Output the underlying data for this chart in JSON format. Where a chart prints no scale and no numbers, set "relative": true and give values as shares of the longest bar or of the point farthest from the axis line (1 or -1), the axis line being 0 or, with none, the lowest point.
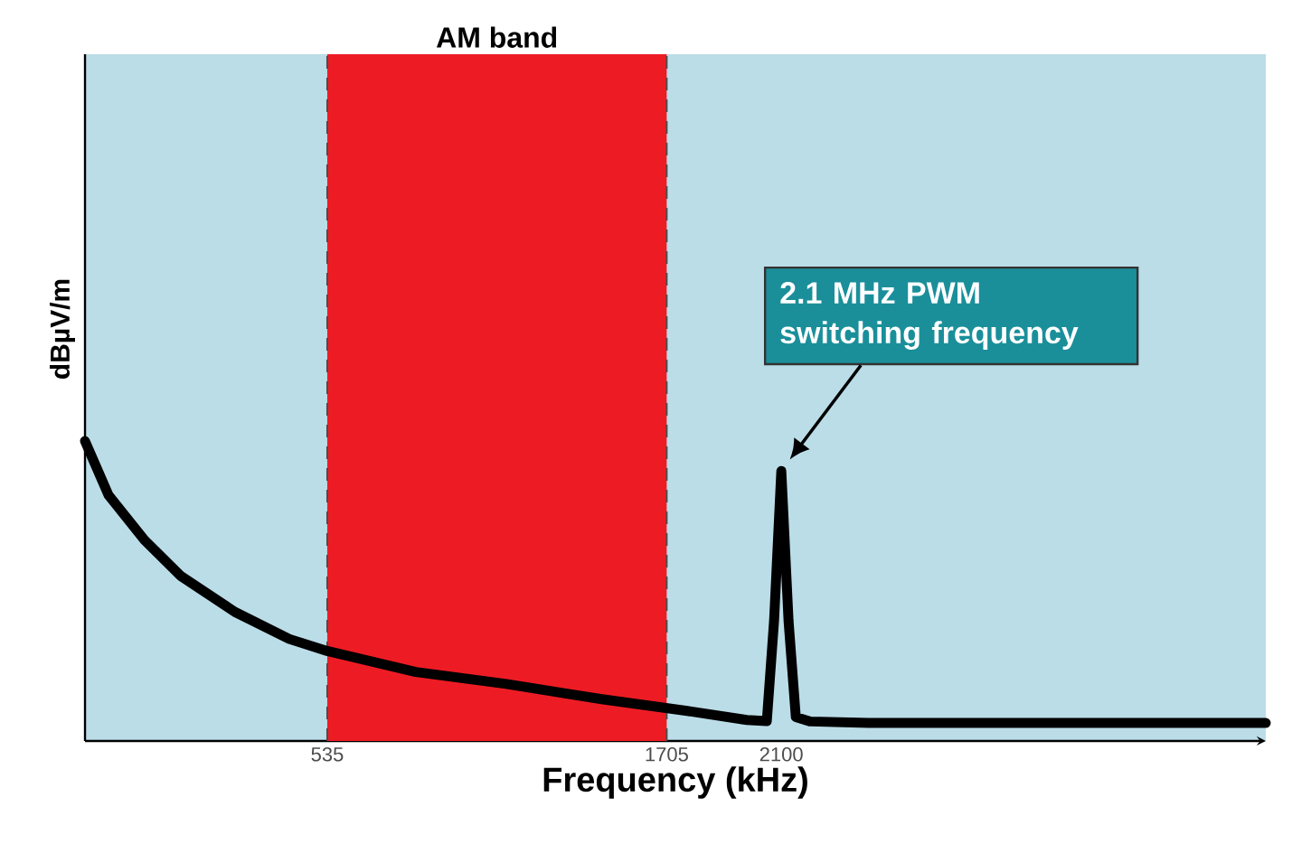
{
  "chart_data": {
    "type": "line",
    "relative": true,
    "xlabel": "Frequency (kHz)",
    "ylabel": "dBµV/m",
    "xlim": [
      -300,
      3770
    ],
    "xticks": [
      535,
      1705,
      2100
    ],
    "x": [
      -300,
      -219,
      -95,
      30,
      217,
      404,
      535,
      840,
      1152,
      1476,
      1776,
      1981,
      2050,
      2075,
      2100,
      2125,
      2150,
      2200,
      2400,
      3000,
      3770
    ],
    "series": [
      {
        "color": "#000000",
        "values": [
          1.0,
          0.82,
          0.67,
          0.55,
          0.43,
          0.34,
          0.3,
          0.23,
          0.19,
          0.14,
          0.1,
          0.07,
          0.066,
          0.4,
          0.9,
          0.4,
          0.08,
          0.065,
          0.06,
          0.06,
          0.06
        ]
      }
    ],
    "bands": [
      {
        "axis": "x",
        "from": 535,
        "to": 1705,
        "label": "AM band",
        "color": "#ed1c24"
      }
    ],
    "annotations": [
      "2.1 MHz PWM switching frequency"
    ]
  }
}
